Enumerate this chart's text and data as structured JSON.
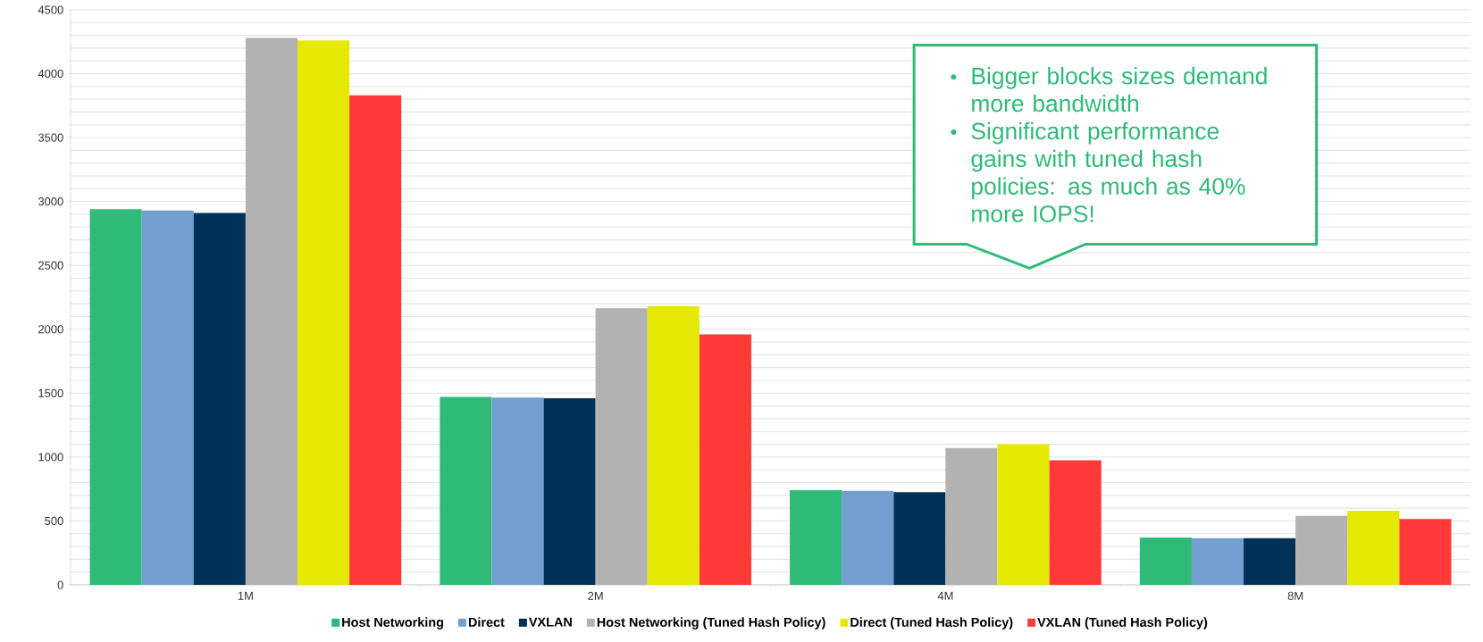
{
  "chart_data": {
    "type": "bar",
    "categories": [
      "1M",
      "2M",
      "4M",
      "8M"
    ],
    "series": [
      {
        "name": "Host Networking",
        "color": "#2fba77",
        "values": [
          2940,
          1470,
          740,
          370
        ]
      },
      {
        "name": "Direct",
        "color": "#729fcf",
        "values": [
          2930,
          1465,
          735,
          365
        ]
      },
      {
        "name": "VXLAN",
        "color": "#003259",
        "values": [
          2910,
          1460,
          725,
          365
        ]
      },
      {
        "name": "Host Networking (Tuned Hash Policy)",
        "color": "#b2b2b2",
        "values": [
          4280,
          2165,
          1070,
          540
        ]
      },
      {
        "name": "Direct (Tuned Hash Policy)",
        "color": "#e6e905",
        "values": [
          4260,
          2180,
          1100,
          580
        ]
      },
      {
        "name": "VXLAN (Tuned Hash Policy)",
        "color": "#ff3838",
        "values": [
          3830,
          1960,
          975,
          515
        ]
      }
    ],
    "ylim": [
      0,
      4500
    ],
    "yticks": [
      0,
      500,
      1000,
      1500,
      2000,
      2500,
      3000,
      3500,
      4000,
      4500
    ],
    "grid": "y",
    "legend": "bottom",
    "annotations": [
      "Bigger blocks sizes demand more bandwidth",
      "Significant performance gains with tuned hash policies: as much as 40% more IOPS!"
    ]
  }
}
